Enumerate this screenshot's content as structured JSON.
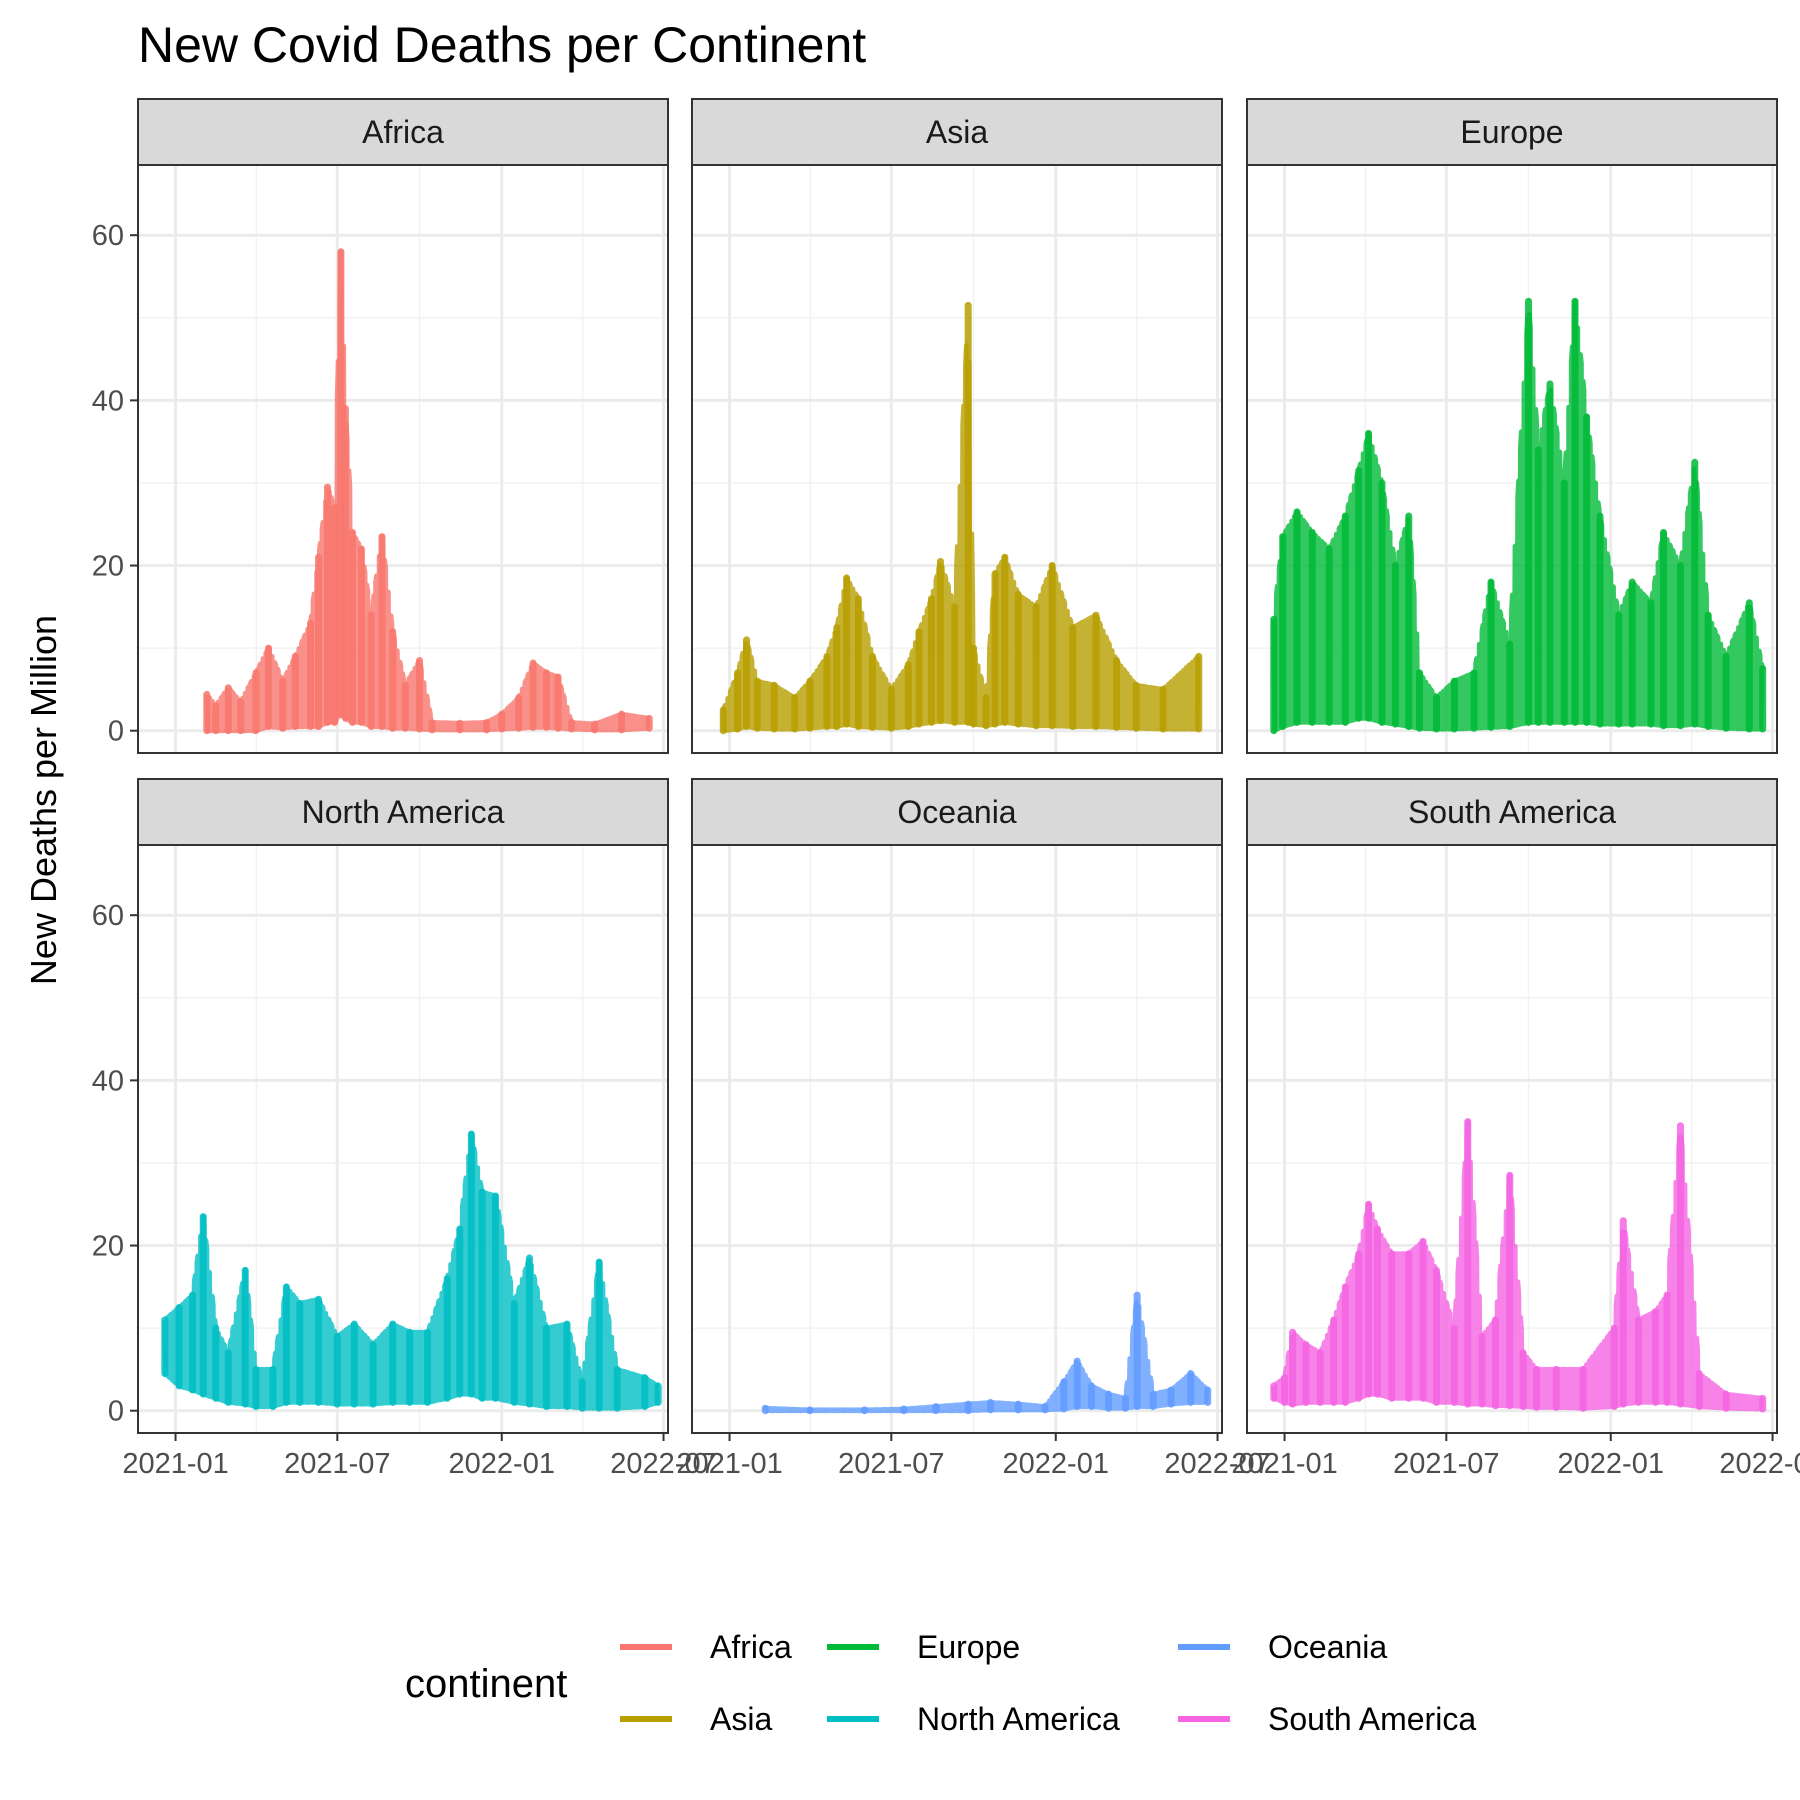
{
  "chart_data": {
    "type": "line",
    "title": "New Covid Deaths per Continent",
    "ylabel": "New Deaths per Million",
    "xlabel": "",
    "ylim": [
      -2.7,
      68.5
    ],
    "yticks": [
      0,
      20,
      40,
      60
    ],
    "xlim": [
      "2020-11-20",
      "2022-07-06"
    ],
    "xticks": [
      "2021-01-01",
      "2021-07-01",
      "2022-01-01",
      "2022-07-01"
    ],
    "xtick_labels": [
      "2021-01",
      "2021-07",
      "2022-01",
      "2022-07"
    ],
    "grid": true,
    "facets": {
      "rows": 2,
      "cols": 3
    },
    "legend": {
      "title": "continent",
      "position": "bottom"
    },
    "panels": [
      {
        "name": "Africa",
        "color": "#F8766D",
        "series": [
          {
            "x": "2021-02-05",
            "lo": 0,
            "hi": 4.4
          },
          {
            "x": "2021-02-15",
            "lo": 0,
            "hi": 3.0
          },
          {
            "x": "2021-03-01",
            "lo": 0,
            "hi": 5.2
          },
          {
            "x": "2021-03-15",
            "lo": 0,
            "hi": 3.5
          },
          {
            "x": "2021-04-01",
            "lo": 0,
            "hi": 7.0
          },
          {
            "x": "2021-04-15",
            "lo": 0.5,
            "hi": 10.0
          },
          {
            "x": "2021-05-01",
            "lo": 0.3,
            "hi": 6.0
          },
          {
            "x": "2021-05-15",
            "lo": 0.5,
            "hi": 9.0
          },
          {
            "x": "2021-06-01",
            "lo": 0.5,
            "hi": 13.0
          },
          {
            "x": "2021-06-10",
            "lo": 0.5,
            "hi": 21.0
          },
          {
            "x": "2021-06-20",
            "lo": 1.0,
            "hi": 29.5
          },
          {
            "x": "2021-06-28",
            "lo": 1.0,
            "hi": 27.0
          },
          {
            "x": "2021-07-05",
            "lo": 2.0,
            "hi": 58.0
          },
          {
            "x": "2021-07-10",
            "lo": 1.5,
            "hi": 39.0
          },
          {
            "x": "2021-07-18",
            "lo": 1.0,
            "hi": 24.0
          },
          {
            "x": "2021-07-28",
            "lo": 1.0,
            "hi": 22.0
          },
          {
            "x": "2021-08-08",
            "lo": 0.5,
            "hi": 14.0
          },
          {
            "x": "2021-08-20",
            "lo": 0.5,
            "hi": 23.5
          },
          {
            "x": "2021-09-01",
            "lo": 0.3,
            "hi": 12.0
          },
          {
            "x": "2021-09-15",
            "lo": 0.3,
            "hi": 5.5
          },
          {
            "x": "2021-10-01",
            "lo": 0.2,
            "hi": 8.5
          },
          {
            "x": "2021-10-15",
            "lo": 0.1,
            "hi": 1.0
          },
          {
            "x": "2021-11-15",
            "lo": 0.1,
            "hi": 0.9
          },
          {
            "x": "2021-12-15",
            "lo": 0.1,
            "hi": 1.0
          },
          {
            "x": "2022-01-01",
            "lo": 0.2,
            "hi": 2.0
          },
          {
            "x": "2022-01-20",
            "lo": 0.3,
            "hi": 4.0
          },
          {
            "x": "2022-02-05",
            "lo": 0.4,
            "hi": 8.2
          },
          {
            "x": "2022-02-20",
            "lo": 0.4,
            "hi": 7.0
          },
          {
            "x": "2022-03-05",
            "lo": 0.3,
            "hi": 6.5
          },
          {
            "x": "2022-03-20",
            "lo": 0.2,
            "hi": 1.0
          },
          {
            "x": "2022-04-15",
            "lo": 0.1,
            "hi": 0.8
          },
          {
            "x": "2022-05-15",
            "lo": 0.1,
            "hi": 2.0
          },
          {
            "x": "2022-06-15",
            "lo": 0.3,
            "hi": 1.5
          }
        ]
      },
      {
        "name": "Asia",
        "color": "#B79F00",
        "series": [
          {
            "x": "2020-12-25",
            "lo": 0,
            "hi": 2.5
          },
          {
            "x": "2021-01-10",
            "lo": 0.2,
            "hi": 7.0
          },
          {
            "x": "2021-01-20",
            "lo": 0.5,
            "hi": 11.0
          },
          {
            "x": "2021-02-01",
            "lo": 0.3,
            "hi": 6.0
          },
          {
            "x": "2021-02-20",
            "lo": 0.2,
            "hi": 5.5
          },
          {
            "x": "2021-03-15",
            "lo": 0.2,
            "hi": 4.0
          },
          {
            "x": "2021-04-01",
            "lo": 0.3,
            "hi": 6.0
          },
          {
            "x": "2021-04-20",
            "lo": 0.5,
            "hi": 9.0
          },
          {
            "x": "2021-05-01",
            "lo": 0.5,
            "hi": 12.5
          },
          {
            "x": "2021-05-12",
            "lo": 0.8,
            "hi": 18.5
          },
          {
            "x": "2021-05-25",
            "lo": 0.5,
            "hi": 16.0
          },
          {
            "x": "2021-06-10",
            "lo": 0.4,
            "hi": 9.0
          },
          {
            "x": "2021-07-01",
            "lo": 0.3,
            "hi": 5.0
          },
          {
            "x": "2021-07-20",
            "lo": 0.5,
            "hi": 8.0
          },
          {
            "x": "2021-08-01",
            "lo": 0.8,
            "hi": 12.0
          },
          {
            "x": "2021-08-15",
            "lo": 1.0,
            "hi": 16.0
          },
          {
            "x": "2021-08-25",
            "lo": 1.2,
            "hi": 20.5
          },
          {
            "x": "2021-09-10",
            "lo": 1.0,
            "hi": 15.0
          },
          {
            "x": "2021-09-25",
            "lo": 1.0,
            "hi": 51.5
          },
          {
            "x": "2021-10-01",
            "lo": 0.8,
            "hi": 10.0
          },
          {
            "x": "2021-10-15",
            "lo": 0.6,
            "hi": 4.0
          },
          {
            "x": "2021-10-25",
            "lo": 0.8,
            "hi": 19.0
          },
          {
            "x": "2021-11-05",
            "lo": 1.0,
            "hi": 21.0
          },
          {
            "x": "2021-11-20",
            "lo": 0.8,
            "hi": 16.5
          },
          {
            "x": "2021-12-10",
            "lo": 0.6,
            "hi": 15.0
          },
          {
            "x": "2021-12-28",
            "lo": 0.6,
            "hi": 20.0
          },
          {
            "x": "2022-01-20",
            "lo": 0.5,
            "hi": 12.5
          },
          {
            "x": "2022-02-15",
            "lo": 0.5,
            "hi": 14.0
          },
          {
            "x": "2022-03-10",
            "lo": 0.4,
            "hi": 8.5
          },
          {
            "x": "2022-04-01",
            "lo": 0.3,
            "hi": 5.5
          },
          {
            "x": "2022-05-01",
            "lo": 0.2,
            "hi": 5.0
          },
          {
            "x": "2022-06-10",
            "lo": 0.2,
            "hi": 9.0
          }
        ]
      },
      {
        "name": "Europe",
        "color": "#00BA38",
        "series": [
          {
            "x": "2020-12-20",
            "lo": 0,
            "hi": 13.5
          },
          {
            "x": "2020-12-30",
            "lo": 0.5,
            "hi": 23.5
          },
          {
            "x": "2021-01-15",
            "lo": 1.0,
            "hi": 26.5
          },
          {
            "x": "2021-02-01",
            "lo": 1.0,
            "hi": 24.0
          },
          {
            "x": "2021-02-20",
            "lo": 1.0,
            "hi": 22.0
          },
          {
            "x": "2021-03-10",
            "lo": 1.0,
            "hi": 26.0
          },
          {
            "x": "2021-03-25",
            "lo": 1.5,
            "hi": 31.5
          },
          {
            "x": "2021-04-05",
            "lo": 1.5,
            "hi": 36.0
          },
          {
            "x": "2021-04-20",
            "lo": 1.0,
            "hi": 30.0
          },
          {
            "x": "2021-05-05",
            "lo": 0.8,
            "hi": 20.0
          },
          {
            "x": "2021-05-20",
            "lo": 0.5,
            "hi": 26.0
          },
          {
            "x": "2021-06-01",
            "lo": 0.3,
            "hi": 7.0
          },
          {
            "x": "2021-06-20",
            "lo": 0.2,
            "hi": 4.0
          },
          {
            "x": "2021-07-10",
            "lo": 0.2,
            "hi": 6.0
          },
          {
            "x": "2021-08-01",
            "lo": 0.3,
            "hi": 7.0
          },
          {
            "x": "2021-08-20",
            "lo": 0.4,
            "hi": 18.0
          },
          {
            "x": "2021-09-10",
            "lo": 0.5,
            "hi": 10.5
          },
          {
            "x": "2021-10-01",
            "lo": 1.0,
            "hi": 52.0
          },
          {
            "x": "2021-10-12",
            "lo": 1.0,
            "hi": 34.0
          },
          {
            "x": "2021-10-25",
            "lo": 1.0,
            "hi": 42.0
          },
          {
            "x": "2021-11-10",
            "lo": 1.0,
            "hi": 30.0
          },
          {
            "x": "2021-11-22",
            "lo": 1.0,
            "hi": 52.0
          },
          {
            "x": "2021-12-05",
            "lo": 1.0,
            "hi": 38.0
          },
          {
            "x": "2021-12-20",
            "lo": 0.8,
            "hi": 26.0
          },
          {
            "x": "2022-01-10",
            "lo": 0.8,
            "hi": 14.0
          },
          {
            "x": "2022-01-25",
            "lo": 0.8,
            "hi": 18.0
          },
          {
            "x": "2022-02-15",
            "lo": 0.8,
            "hi": 15.5
          },
          {
            "x": "2022-03-01",
            "lo": 0.6,
            "hi": 24.0
          },
          {
            "x": "2022-03-20",
            "lo": 0.6,
            "hi": 20.0
          },
          {
            "x": "2022-04-05",
            "lo": 0.8,
            "hi": 32.5
          },
          {
            "x": "2022-04-20",
            "lo": 0.5,
            "hi": 14.0
          },
          {
            "x": "2022-05-10",
            "lo": 0.3,
            "hi": 9.0
          },
          {
            "x": "2022-06-05",
            "lo": 0.2,
            "hi": 15.5
          },
          {
            "x": "2022-06-20",
            "lo": 0.2,
            "hi": 7.5
          }
        ]
      },
      {
        "name": "North America",
        "color": "#00BFC4",
        "series": [
          {
            "x": "2020-12-20",
            "lo": 4.5,
            "hi": 11.0
          },
          {
            "x": "2021-01-05",
            "lo": 3.0,
            "hi": 12.5
          },
          {
            "x": "2021-01-20",
            "lo": 2.5,
            "hi": 14.0
          },
          {
            "x": "2021-02-01",
            "lo": 2.0,
            "hi": 23.5
          },
          {
            "x": "2021-02-15",
            "lo": 1.5,
            "hi": 10.0
          },
          {
            "x": "2021-03-01",
            "lo": 1.0,
            "hi": 7.0
          },
          {
            "x": "2021-03-20",
            "lo": 0.8,
            "hi": 17.0
          },
          {
            "x": "2021-04-01",
            "lo": 0.5,
            "hi": 5.0
          },
          {
            "x": "2021-04-20",
            "lo": 0.5,
            "hi": 5.0
          },
          {
            "x": "2021-05-05",
            "lo": 1.0,
            "hi": 15.0
          },
          {
            "x": "2021-05-20",
            "lo": 1.0,
            "hi": 13.0
          },
          {
            "x": "2021-06-10",
            "lo": 1.0,
            "hi": 13.5
          },
          {
            "x": "2021-07-01",
            "lo": 0.8,
            "hi": 9.0
          },
          {
            "x": "2021-07-20",
            "lo": 0.8,
            "hi": 10.5
          },
          {
            "x": "2021-08-10",
            "lo": 0.8,
            "hi": 8.0
          },
          {
            "x": "2021-09-01",
            "lo": 1.0,
            "hi": 10.5
          },
          {
            "x": "2021-09-20",
            "lo": 1.0,
            "hi": 9.5
          },
          {
            "x": "2021-10-10",
            "lo": 1.0,
            "hi": 9.5
          },
          {
            "x": "2021-11-01",
            "lo": 1.5,
            "hi": 16.0
          },
          {
            "x": "2021-11-15",
            "lo": 2.0,
            "hi": 22.0
          },
          {
            "x": "2021-11-28",
            "lo": 2.0,
            "hi": 33.5
          },
          {
            "x": "2021-12-10",
            "lo": 1.5,
            "hi": 26.5
          },
          {
            "x": "2021-12-25",
            "lo": 1.5,
            "hi": 26.0
          },
          {
            "x": "2022-01-15",
            "lo": 1.0,
            "hi": 13.0
          },
          {
            "x": "2022-02-01",
            "lo": 0.8,
            "hi": 18.5
          },
          {
            "x": "2022-02-20",
            "lo": 0.5,
            "hi": 10.0
          },
          {
            "x": "2022-03-15",
            "lo": 0.5,
            "hi": 10.5
          },
          {
            "x": "2022-04-01",
            "lo": 0.3,
            "hi": 3.5
          },
          {
            "x": "2022-04-20",
            "lo": 0.3,
            "hi": 18.0
          },
          {
            "x": "2022-05-10",
            "lo": 0.3,
            "hi": 5.0
          },
          {
            "x": "2022-06-10",
            "lo": 0.5,
            "hi": 4.0
          },
          {
            "x": "2022-06-25",
            "lo": 1.0,
            "hi": 3.0
          }
        ]
      },
      {
        "name": "Oceania",
        "color": "#619CFF",
        "series": [
          {
            "x": "2021-02-10",
            "lo": 0,
            "hi": 0.3
          },
          {
            "x": "2021-04-01",
            "lo": 0,
            "hi": 0.1
          },
          {
            "x": "2021-06-01",
            "lo": 0,
            "hi": 0.1
          },
          {
            "x": "2021-07-15",
            "lo": 0,
            "hi": 0.2
          },
          {
            "x": "2021-08-20",
            "lo": 0,
            "hi": 0.5
          },
          {
            "x": "2021-09-25",
            "lo": 0,
            "hi": 0.8
          },
          {
            "x": "2021-10-20",
            "lo": 0.1,
            "hi": 1.0
          },
          {
            "x": "2021-11-20",
            "lo": 0.1,
            "hi": 0.8
          },
          {
            "x": "2021-12-20",
            "lo": 0.1,
            "hi": 0.5
          },
          {
            "x": "2022-01-10",
            "lo": 0.2,
            "hi": 3.5
          },
          {
            "x": "2022-01-25",
            "lo": 0.5,
            "hi": 6.0
          },
          {
            "x": "2022-02-10",
            "lo": 0.5,
            "hi": 3.0
          },
          {
            "x": "2022-03-01",
            "lo": 0.3,
            "hi": 2.0
          },
          {
            "x": "2022-03-20",
            "lo": 0.3,
            "hi": 1.5
          },
          {
            "x": "2022-04-02",
            "lo": 0.5,
            "hi": 14.0
          },
          {
            "x": "2022-04-20",
            "lo": 0.5,
            "hi": 2.0
          },
          {
            "x": "2022-05-10",
            "lo": 0.8,
            "hi": 2.5
          },
          {
            "x": "2022-06-01",
            "lo": 1.0,
            "hi": 4.5
          },
          {
            "x": "2022-06-20",
            "lo": 1.0,
            "hi": 2.5
          }
        ]
      },
      {
        "name": "South America",
        "color": "#F564E3",
        "series": [
          {
            "x": "2020-12-20",
            "lo": 1.5,
            "hi": 3.0
          },
          {
            "x": "2021-01-01",
            "lo": 1.0,
            "hi": 4.0
          },
          {
            "x": "2021-01-10",
            "lo": 0.8,
            "hi": 9.5
          },
          {
            "x": "2021-01-25",
            "lo": 1.0,
            "hi": 8.0
          },
          {
            "x": "2021-02-10",
            "lo": 1.0,
            "hi": 7.0
          },
          {
            "x": "2021-02-25",
            "lo": 1.0,
            "hi": 11.0
          },
          {
            "x": "2021-03-10",
            "lo": 1.0,
            "hi": 15.0
          },
          {
            "x": "2021-03-25",
            "lo": 1.5,
            "hi": 19.0
          },
          {
            "x": "2021-04-05",
            "lo": 2.0,
            "hi": 25.0
          },
          {
            "x": "2021-04-15",
            "lo": 2.0,
            "hi": 22.0
          },
          {
            "x": "2021-05-01",
            "lo": 1.5,
            "hi": 19.0
          },
          {
            "x": "2021-05-20",
            "lo": 1.5,
            "hi": 19.0
          },
          {
            "x": "2021-06-05",
            "lo": 1.5,
            "hi": 20.5
          },
          {
            "x": "2021-06-20",
            "lo": 1.0,
            "hi": 17.0
          },
          {
            "x": "2021-07-10",
            "lo": 1.0,
            "hi": 10.0
          },
          {
            "x": "2021-07-25",
            "lo": 0.8,
            "hi": 35.0
          },
          {
            "x": "2021-08-10",
            "lo": 0.8,
            "hi": 9.0
          },
          {
            "x": "2021-08-25",
            "lo": 0.6,
            "hi": 11.0
          },
          {
            "x": "2021-09-10",
            "lo": 0.6,
            "hi": 28.5
          },
          {
            "x": "2021-09-25",
            "lo": 0.5,
            "hi": 7.0
          },
          {
            "x": "2021-10-10",
            "lo": 0.4,
            "hi": 5.0
          },
          {
            "x": "2021-11-01",
            "lo": 0.4,
            "hi": 5.0
          },
          {
            "x": "2021-12-01",
            "lo": 0.3,
            "hi": 5.0
          },
          {
            "x": "2022-01-05",
            "lo": 0.5,
            "hi": 10.0
          },
          {
            "x": "2022-01-15",
            "lo": 0.8,
            "hi": 23.0
          },
          {
            "x": "2022-02-01",
            "lo": 1.0,
            "hi": 11.0
          },
          {
            "x": "2022-02-20",
            "lo": 1.0,
            "hi": 12.0
          },
          {
            "x": "2022-03-05",
            "lo": 1.0,
            "hi": 14.0
          },
          {
            "x": "2022-03-20",
            "lo": 0.8,
            "hi": 34.5
          },
          {
            "x": "2022-04-10",
            "lo": 0.5,
            "hi": 4.5
          },
          {
            "x": "2022-05-10",
            "lo": 0.3,
            "hi": 2.0
          },
          {
            "x": "2022-06-20",
            "lo": 0.2,
            "hi": 1.5
          }
        ]
      }
    ]
  }
}
